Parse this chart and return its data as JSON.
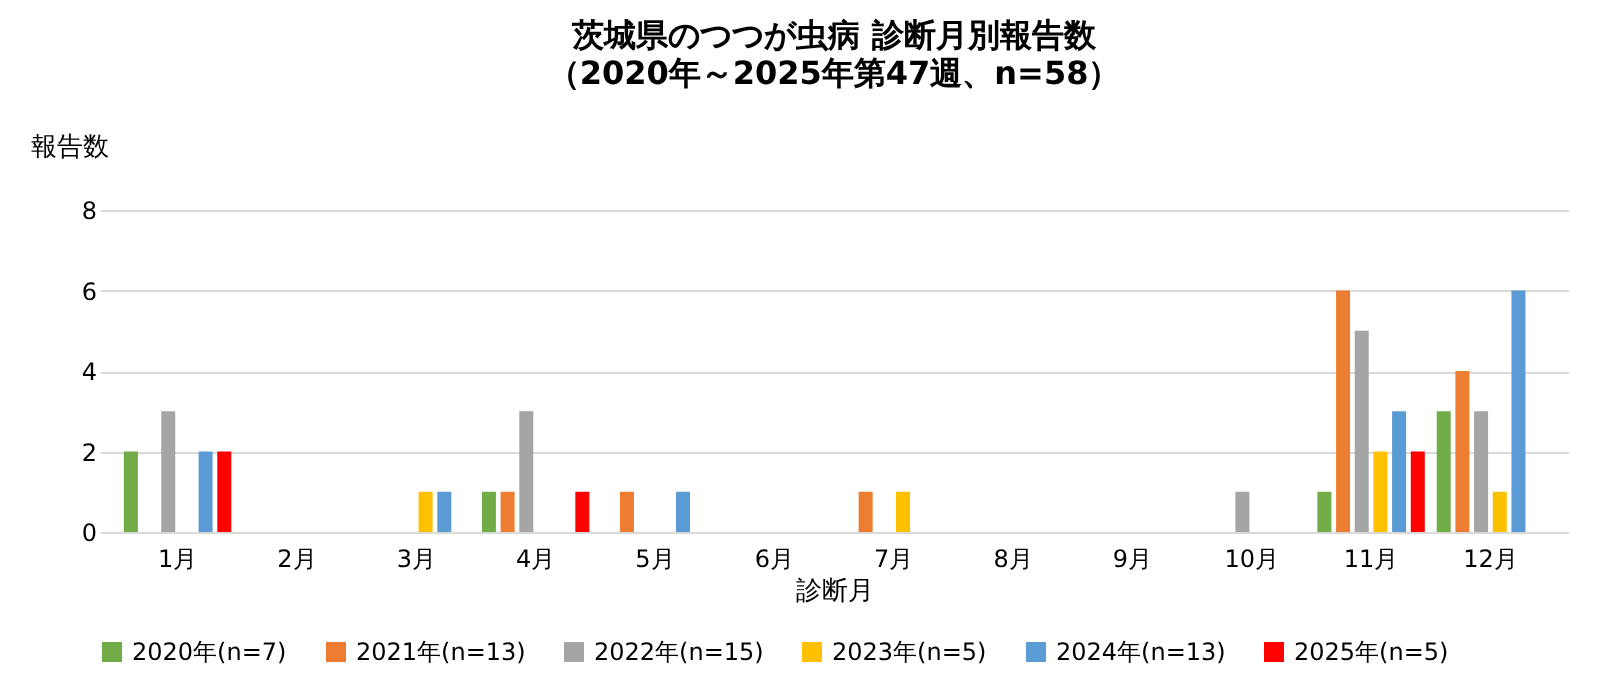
{
  "chart_data": {
    "type": "bar",
    "title": "茨城県のつつが虫病 診断月別報告数",
    "subtitle": "（2020年～2025年第47週、n=58）",
    "xlabel": "診断月",
    "ylabel": "報告数",
    "categories": [
      "1月",
      "2月",
      "3月",
      "4月",
      "5月",
      "6月",
      "7月",
      "8月",
      "9月",
      "10月",
      "11月",
      "12月"
    ],
    "series": [
      {
        "name": "2020年(n=7)",
        "color": "#70ad47",
        "values": [
          2,
          null,
          null,
          1,
          null,
          null,
          null,
          null,
          null,
          null,
          1,
          3
        ]
      },
      {
        "name": "2021年(n=13)",
        "color": "#ed7d31",
        "values": [
          null,
          null,
          null,
          1,
          1,
          null,
          1,
          null,
          null,
          null,
          6,
          4
        ]
      },
      {
        "name": "2022年(n=15)",
        "color": "#a5a5a5",
        "values": [
          3,
          null,
          null,
          3,
          null,
          null,
          null,
          null,
          null,
          1,
          5,
          3
        ]
      },
      {
        "name": "2023年(n=5)",
        "color": "#ffc000",
        "values": [
          null,
          null,
          1,
          null,
          null,
          null,
          1,
          null,
          null,
          null,
          2,
          1
        ]
      },
      {
        "name": "2024年(n=13)",
        "color": "#5b9bd5",
        "values": [
          2,
          null,
          1,
          null,
          1,
          null,
          null,
          null,
          null,
          null,
          3,
          6
        ]
      },
      {
        "name": "2025年(n=5)",
        "color": "#ff0000",
        "values": [
          2,
          null,
          null,
          1,
          null,
          null,
          null,
          null,
          null,
          null,
          2,
          null
        ]
      }
    ],
    "ylim": [
      0,
      8
    ],
    "yticks": [
      0,
      2,
      4,
      6,
      8
    ],
    "grid": "y",
    "legend": "bottom"
  }
}
